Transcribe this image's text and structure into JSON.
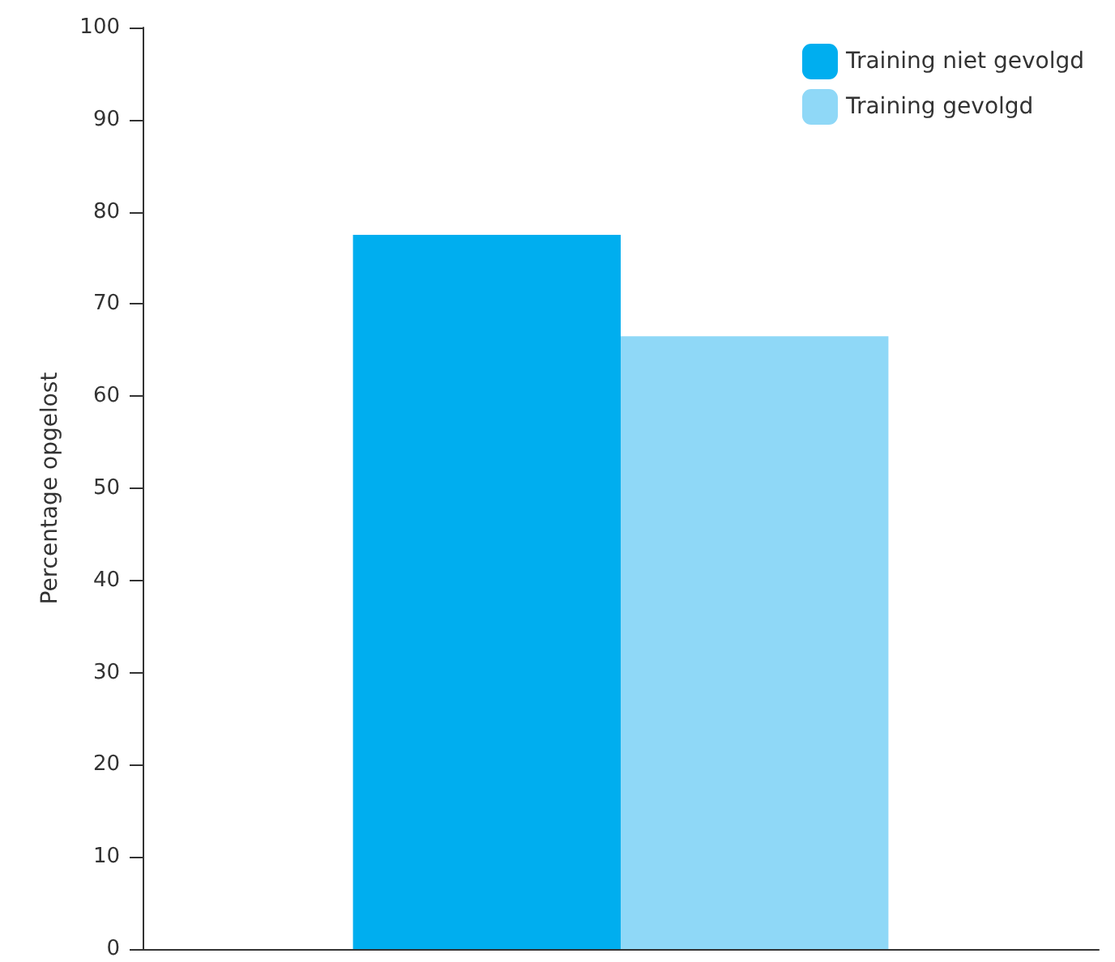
{
  "chart_data": {
    "type": "bar",
    "ylabel": "Percentage opgelost",
    "categories": [
      null
    ],
    "series": [
      {
        "name": "Training niet gevolgd",
        "color": "#00aeef",
        "values": [
          77.5
        ]
      },
      {
        "name": "Training gevolgd",
        "color": "#8fd8f7",
        "values": [
          66.5
        ]
      }
    ],
    "ylim": [
      0,
      100
    ],
    "yticks": [
      0,
      10,
      20,
      30,
      40,
      50,
      60,
      70,
      80,
      90,
      100
    ],
    "grid": false,
    "legend": "top right"
  }
}
